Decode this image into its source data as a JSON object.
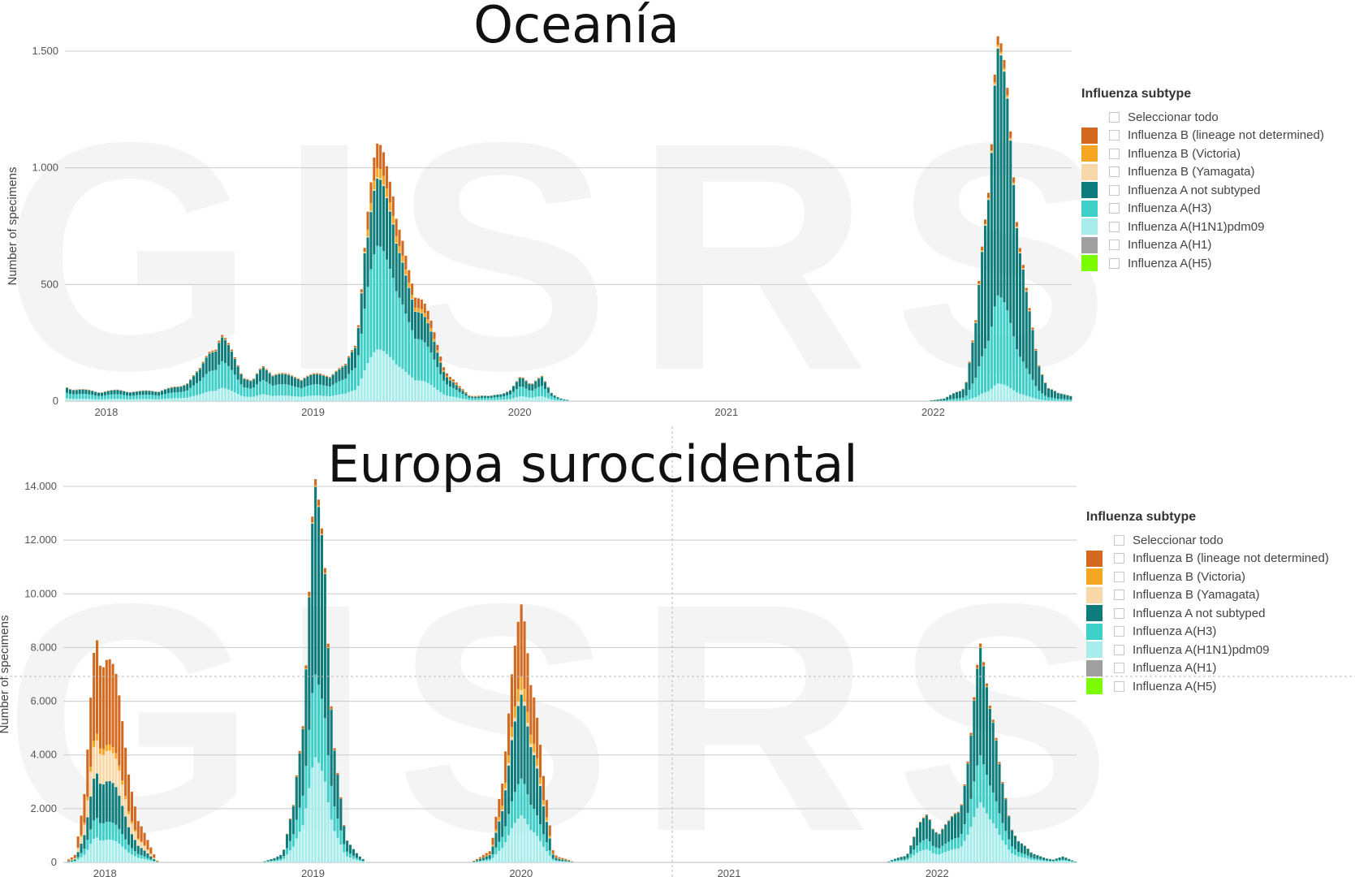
{
  "legend": {
    "title": "Influenza subtype",
    "select_all": "Seleccionar todo",
    "items": [
      {
        "label": "Influenza B (lineage not determined)",
        "color": "#d2691e"
      },
      {
        "label": "Influenza B (Victoria)",
        "color": "#f5a623"
      },
      {
        "label": "Influenza B (Yamagata)",
        "color": "#f8d8a8"
      },
      {
        "label": "Influenza A not subtyped",
        "color": "#0e7c7b"
      },
      {
        "label": "Influenza A(H3)",
        "color": "#3ecfc9"
      },
      {
        "label": "Influenza A(H1N1)pdm09",
        "color": "#a8ecec"
      },
      {
        "label": "Influenza A(H1)",
        "color": "#a0a0a0"
      },
      {
        "label": "Influenza A(H5)",
        "color": "#7cfc00"
      }
    ]
  },
  "watermark": "GISRS",
  "chart_data": [
    {
      "type": "bar",
      "stacked": true,
      "title": "Oceanía",
      "ylabel": "Number of specimens",
      "ylim": [
        0,
        1500
      ],
      "yticks": [
        0,
        500,
        1000,
        1500
      ],
      "ytick_labels": [
        "0",
        "500",
        "1.000",
        "1.500"
      ],
      "xlim": [
        2017.85,
        2022.72
      ],
      "xticks": [
        2018,
        2019,
        2020,
        2021,
        2022
      ],
      "xtick_labels": [
        "2018",
        "2019",
        "2020",
        "2021",
        "2022"
      ],
      "series_order": [
        "Influenza A(H1N1)pdm09",
        "Influenza A(H3)",
        "Influenza A not subtyped",
        "Influenza B (Yamagata)",
        "Influenza B (Victoria)",
        "Influenza B (lineage not determined)"
      ],
      "x": [
        2017.85,
        2017.9,
        2018.0,
        2018.1,
        2018.2,
        2018.3,
        2018.4,
        2018.5,
        2018.55,
        2018.6,
        2018.65,
        2018.7,
        2018.75,
        2018.8,
        2018.9,
        2018.95,
        2019.0,
        2019.1,
        2019.2,
        2019.25,
        2019.3,
        2019.35,
        2019.4,
        2019.45,
        2019.5,
        2019.55,
        2019.6,
        2019.65,
        2019.7,
        2019.75,
        2019.8,
        2019.9,
        2020.0,
        2020.05,
        2020.1,
        2020.15,
        2020.2,
        2020.25,
        2020.3,
        2020.35,
        2021.0,
        2022.0,
        2022.1,
        2022.2,
        2022.25,
        2022.3,
        2022.35,
        2022.4,
        2022.45,
        2022.5,
        2022.55,
        2022.6,
        2022.65,
        2022.72
      ],
      "total": [
        60,
        50,
        40,
        45,
        40,
        45,
        60,
        130,
        220,
        280,
        200,
        120,
        80,
        140,
        110,
        100,
        105,
        110,
        140,
        250,
        700,
        1000,
        1140,
        700,
        550,
        480,
        350,
        220,
        110,
        60,
        25,
        20,
        45,
        100,
        80,
        100,
        30,
        10,
        0,
        0,
        0,
        0,
        10,
        60,
        300,
        800,
        1450,
        1200,
        800,
        400,
        150,
        60,
        30,
        20
      ],
      "yamagata_share": 0.02,
      "victoria_share": 0.06,
      "bnd_share_peak": 0.12,
      "h3_share": 0.45,
      "h1n1_share": 0.12,
      "anot_share": 0.35
    },
    {
      "type": "bar",
      "stacked": true,
      "title": "Europa suroccidental",
      "ylabel": "Number of specimens",
      "ylim": [
        0,
        14000
      ],
      "yticks": [
        0,
        2000,
        4000,
        6000,
        8000,
        10000,
        12000,
        14000
      ],
      "ytick_labels": [
        "0",
        "2.000",
        "4.000",
        "6.000",
        "8.000",
        "10.000",
        "12.000",
        "14.000"
      ],
      "xlim": [
        2017.85,
        2022.72
      ],
      "xticks": [
        2018,
        2019,
        2020,
        2021,
        2022
      ],
      "xtick_labels": [
        "2018",
        "2019",
        "2020",
        "2021",
        "2022"
      ],
      "x": [
        2017.85,
        2017.9,
        2017.95,
        2018.0,
        2018.05,
        2018.1,
        2018.15,
        2018.2,
        2018.3,
        2018.8,
        2018.9,
        2018.95,
        2019.0,
        2019.05,
        2019.1,
        2019.15,
        2019.2,
        2019.3,
        2019.8,
        2019.9,
        2019.95,
        2020.0,
        2020.05,
        2020.1,
        2020.15,
        2020.2,
        2020.3,
        2021.0,
        2021.5,
        2021.8,
        2021.9,
        2021.95,
        2022.0,
        2022.05,
        2022.1,
        2022.15,
        2022.2,
        2022.25,
        2022.3,
        2022.35,
        2022.4,
        2022.5,
        2022.6,
        2022.65,
        2022.72
      ],
      "total": [
        0,
        300,
        2500,
        8500,
        7500,
        6200,
        4000,
        1500,
        0,
        0,
        300,
        2000,
        6000,
        13000,
        11000,
        4000,
        800,
        0,
        0,
        400,
        3000,
        6500,
        9000,
        7000,
        3000,
        300,
        0,
        0,
        0,
        0,
        300,
        1200,
        1800,
        1000,
        1400,
        2000,
        4000,
        7500,
        6500,
        3000,
        1200,
        300,
        100,
        200,
        0
      ],
      "h3_share": 0.3,
      "h1n1_share": 0.2,
      "anot_share": 0.5
    }
  ]
}
